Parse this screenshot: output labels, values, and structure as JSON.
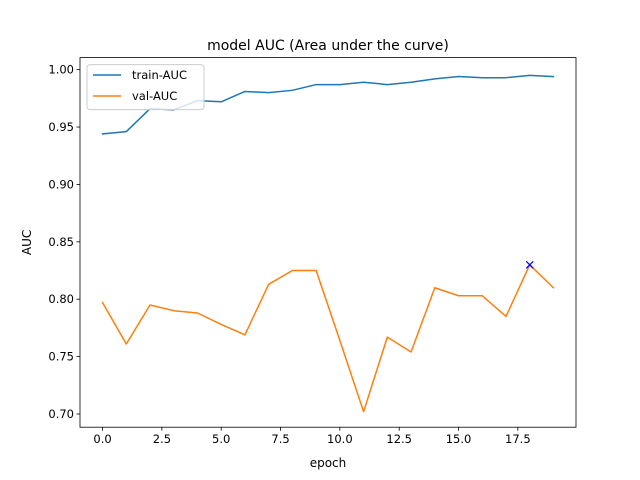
{
  "chart_data": {
    "type": "line",
    "title": "model AUC (Area under the curve)",
    "xlabel": "epoch",
    "ylabel": "AUC",
    "xlim": [
      -0.95,
      19.95
    ],
    "ylim": [
      0.6885,
      1.0105
    ],
    "x_ticks": [
      "0.0",
      "2.5",
      "5.0",
      "7.5",
      "10.0",
      "12.5",
      "15.0",
      "17.5"
    ],
    "y_ticks": [
      "0.70",
      "0.75",
      "0.80",
      "0.85",
      "0.90",
      "0.95",
      "1.00"
    ],
    "grid": false,
    "legend_position": "top-left",
    "x": [
      0,
      1,
      2,
      3,
      4,
      5,
      6,
      7,
      8,
      9,
      10,
      11,
      12,
      13,
      14,
      15,
      16,
      17,
      18,
      19
    ],
    "series": [
      {
        "name": "train-AUC",
        "color": "#1f77b4",
        "values": [
          0.944,
          0.946,
          0.966,
          0.965,
          0.973,
          0.972,
          0.981,
          0.98,
          0.982,
          0.987,
          0.987,
          0.989,
          0.987,
          0.989,
          0.992,
          0.994,
          0.993,
          0.993,
          0.995,
          0.994
        ]
      },
      {
        "name": "val-AUC",
        "color": "#ff7f0e",
        "values": [
          0.797,
          0.761,
          0.795,
          0.79,
          0.788,
          0.778,
          0.769,
          0.813,
          0.825,
          0.825,
          0.764,
          0.702,
          0.767,
          0.754,
          0.81,
          0.803,
          0.803,
          0.785,
          0.83,
          0.81
        ]
      }
    ],
    "annotations": [
      {
        "marker": "x",
        "x": 18,
        "y": 0.83,
        "color": "#0000ff"
      }
    ]
  }
}
